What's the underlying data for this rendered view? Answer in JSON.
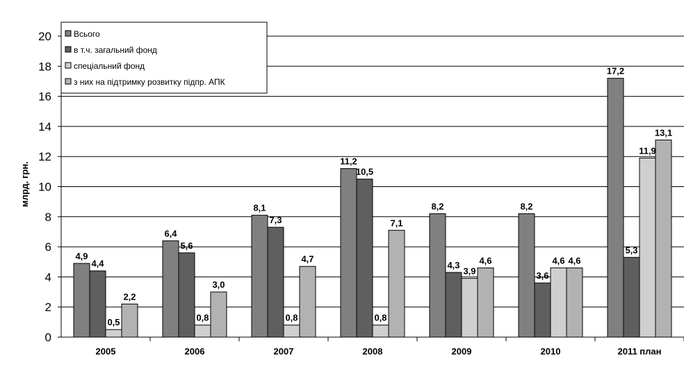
{
  "chart_data": {
    "type": "bar",
    "title": "",
    "xlabel": "",
    "ylabel": "млрд. грн.",
    "ylim": [
      0,
      20
    ],
    "yticks": [
      "0",
      "2",
      "4",
      "6",
      "8",
      "10",
      "12",
      "14",
      "16",
      "18",
      "20"
    ],
    "categories": [
      "2005",
      "2006",
      "2007",
      "2008",
      "2009",
      "2010",
      "2011 план"
    ],
    "grid": true,
    "legend_position": "top-left",
    "series": [
      {
        "name": "Всього",
        "color": "#808080",
        "values": [
          4.9,
          6.4,
          8.1,
          11.2,
          8.2,
          8.2,
          17.2
        ],
        "labels": [
          "4,9",
          "6,4",
          "8,1",
          "11,2",
          "8,2",
          "8,2",
          "17,2"
        ]
      },
      {
        "name": "в т.ч. загальний фонд",
        "color": "#5f5f5f",
        "values": [
          4.4,
          5.6,
          7.3,
          10.5,
          4.3,
          3.6,
          5.3
        ],
        "labels": [
          "4,4",
          "5,6",
          "7,3",
          "10,5",
          "4,3",
          "3,6",
          "5,3"
        ]
      },
      {
        "name": "спеціальний фонд",
        "color": "#cfcfcf",
        "values": [
          0.5,
          0.8,
          0.8,
          0.8,
          3.9,
          4.6,
          11.9
        ],
        "labels": [
          "0,5",
          "0,8",
          "0,8",
          "0,8",
          "3,9",
          "4,6",
          "11,9"
        ]
      },
      {
        "name": "з них на підтримку розвитку підпр. АПК",
        "color": "#b2b2b2",
        "values": [
          2.2,
          3.0,
          4.7,
          7.1,
          4.6,
          4.6,
          13.1
        ],
        "labels": [
          "2,2",
          "3,0",
          "4,7",
          "7,1",
          "4,6",
          "4,6",
          "13,1"
        ]
      }
    ]
  }
}
